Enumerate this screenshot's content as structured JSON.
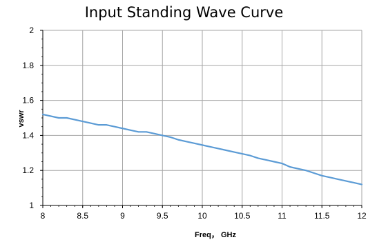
{
  "chart_data": {
    "type": "line",
    "title": "Input Standing Wave Curve",
    "xlabel": "Freq， GHz",
    "ylabel": "vswr",
    "xlim": [
      8,
      12
    ],
    "ylim": [
      1,
      2
    ],
    "x_ticks": [
      "8",
      "8.5",
      "9",
      "9.5",
      "10",
      "10.5",
      "11",
      "11.5",
      "12"
    ],
    "y_ticks": [
      "1",
      "1.2",
      "1.4",
      "1.6",
      "1.8",
      "2"
    ],
    "grid": true,
    "series": [
      {
        "color": "#5b9bd5",
        "x": [
          8.0,
          8.2,
          8.3,
          8.5,
          8.7,
          8.8,
          8.9,
          9.0,
          9.1,
          9.2,
          9.3,
          9.4,
          9.5,
          9.6,
          9.7,
          9.8,
          9.9,
          10.0,
          10.1,
          10.2,
          10.3,
          10.4,
          10.5,
          10.6,
          10.7,
          10.8,
          10.9,
          11.0,
          11.1,
          11.2,
          11.3,
          11.4,
          11.5,
          11.6,
          11.7,
          11.8,
          11.9,
          12.0
        ],
        "y": [
          1.52,
          1.5,
          1.5,
          1.48,
          1.46,
          1.46,
          1.45,
          1.44,
          1.43,
          1.42,
          1.42,
          1.41,
          1.4,
          1.39,
          1.375,
          1.365,
          1.355,
          1.345,
          1.335,
          1.325,
          1.315,
          1.305,
          1.295,
          1.285,
          1.27,
          1.26,
          1.25,
          1.24,
          1.22,
          1.21,
          1.2,
          1.185,
          1.17,
          1.16,
          1.15,
          1.14,
          1.13,
          1.12
        ]
      }
    ]
  }
}
